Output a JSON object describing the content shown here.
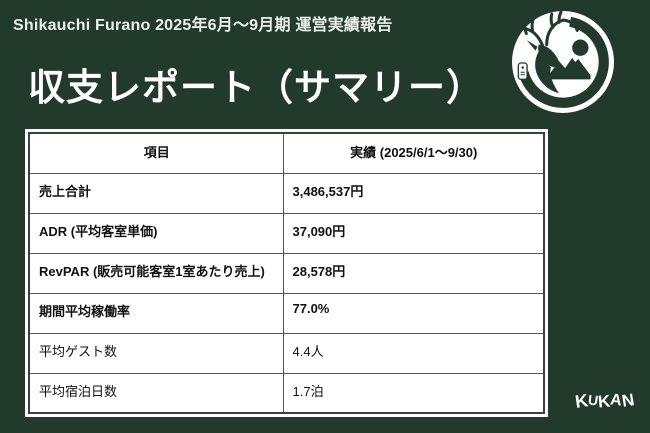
{
  "slide": {
    "bg_color": "#223a2b",
    "header_label": "Shikauchi Furano 2025年6月〜9月期 運営実績報告",
    "title": "収支レポート（サマリー）"
  },
  "table": {
    "columns": [
      "項目",
      "実績 (2025/6/1～9/30)"
    ],
    "rows": [
      {
        "label": "売上合計",
        "value": "3,486,537円",
        "bold": true
      },
      {
        "label": "ADR (平均客室単価)",
        "value": "37,090円",
        "bold": true
      },
      {
        "label": "RevPAR (販売可能客室1室あたり売上)",
        "value": "28,578円",
        "bold": true
      },
      {
        "label": "期間平均稼働率",
        "value": "77.0%",
        "bold": true
      },
      {
        "label": "平均ゲスト数",
        "value": "4.4人",
        "bold": false
      },
      {
        "label": "平均宿泊日数",
        "value": "1.7泊",
        "bold": false
      }
    ]
  },
  "logo": {
    "name": "shikauchi-deer-emblem",
    "ink_color": "#223a2b",
    "disc_color": "#ffffff"
  },
  "watermark": {
    "text": "KUKAN"
  }
}
